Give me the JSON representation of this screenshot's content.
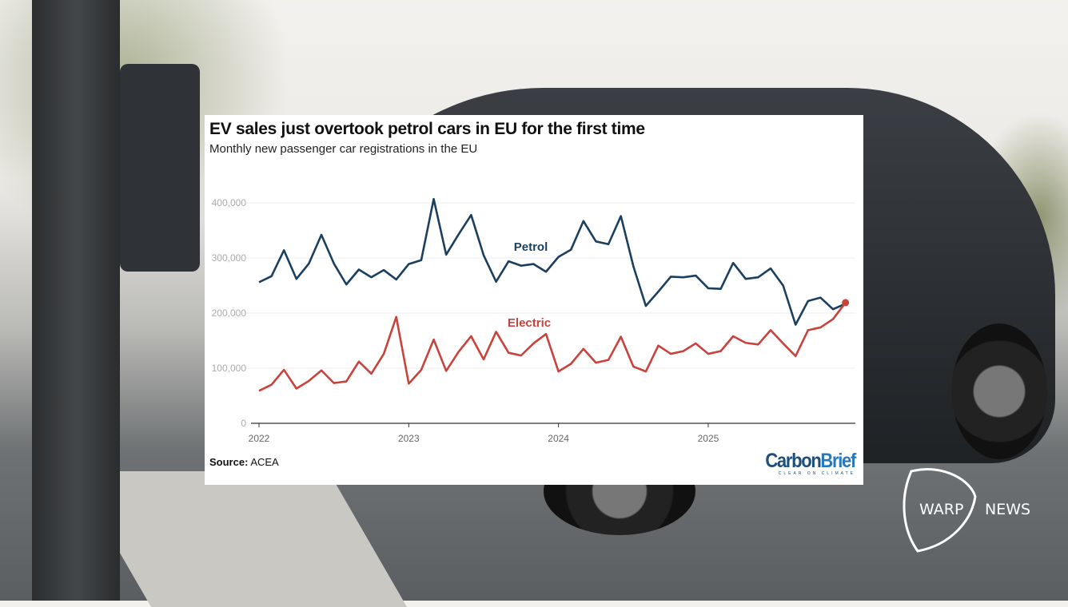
{
  "chart_data": {
    "type": "line",
    "title": "EV sales just overtook petrol cars in EU for the first time",
    "subtitle": "Monthly new passenger car registrations in the EU",
    "x_start": "2022-01",
    "x_end": "2025-12",
    "x_ticks": [
      "2022",
      "2023",
      "2024",
      "2025"
    ],
    "y_ticks": [
      "0",
      "100,000",
      "200,000",
      "300,000",
      "400,000"
    ],
    "ylim": [
      0,
      400000
    ],
    "grid": "horizontal",
    "series": [
      {
        "name": "Petrol",
        "color": "#1b3f5e",
        "values": [
          256000,
          267000,
          314000,
          262000,
          290000,
          342000,
          290000,
          252000,
          279000,
          265000,
          278000,
          261000,
          289000,
          296000,
          407000,
          306000,
          343000,
          378000,
          305000,
          257000,
          294000,
          286000,
          289000,
          275000,
          302000,
          315000,
          367000,
          330000,
          325000,
          376000,
          285000,
          213000,
          239000,
          266000,
          265000,
          268000,
          245000,
          244000,
          291000,
          262000,
          265000,
          281000,
          250000,
          179000,
          222000,
          228000,
          207000,
          217000
        ]
      },
      {
        "name": "Electric",
        "color": "#c9423b",
        "values": [
          59000,
          70000,
          97000,
          63000,
          77000,
          96000,
          73000,
          76000,
          112000,
          90000,
          126000,
          193000,
          72000,
          97000,
          152000,
          95000,
          130000,
          158000,
          116000,
          166000,
          128000,
          123000,
          145000,
          162000,
          94000,
          108000,
          135000,
          110000,
          115000,
          157000,
          103000,
          94000,
          141000,
          126000,
          131000,
          145000,
          126000,
          131000,
          158000,
          146000,
          143000,
          169000,
          145000,
          122000,
          169000,
          174000,
          189000,
          219000
        ]
      }
    ]
  },
  "source": {
    "label": "Source:",
    "value": "ACEA"
  },
  "branding": {
    "chart_logo": "CarbonBrief",
    "chart_logo_tagline": "CLEAR ON CLIMATE",
    "watermark_left": "WARP",
    "watermark_right": "NEWS"
  }
}
